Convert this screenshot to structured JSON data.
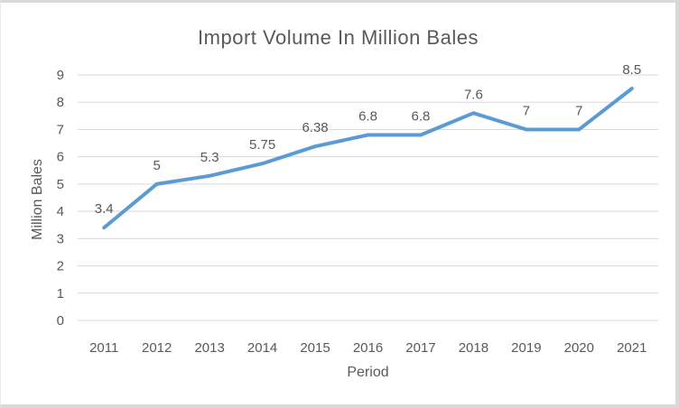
{
  "chart": {
    "title": "Import Volume In Million Bales",
    "x_axis_title": "Period",
    "y_axis_title": "Million Bales"
  },
  "chart_data": {
    "type": "line",
    "title": "Import Volume In Million Bales",
    "xlabel": "Period",
    "ylabel": "Million Bales",
    "categories": [
      "2011",
      "2012",
      "2013",
      "2014",
      "2015",
      "2016",
      "2017",
      "2018",
      "2019",
      "2020",
      "2021"
    ],
    "series": [
      {
        "name": "Import Volume",
        "values": [
          3.4,
          5,
          5.3,
          5.75,
          6.38,
          6.8,
          6.8,
          7.6,
          7,
          7,
          8.5
        ],
        "data_labels": [
          "3.4",
          "5",
          "5.3",
          "5.75",
          "6.38",
          "6.8",
          "6.8",
          "7.6",
          "7",
          "7",
          "8.5"
        ]
      }
    ],
    "ylim": [
      0,
      9
    ],
    "ytick_step": 1,
    "grid": "horizontal",
    "legend": "none",
    "line_color": "#5B9BD5",
    "gridline_color": "#D9D9D9",
    "text_color": "#595959"
  }
}
